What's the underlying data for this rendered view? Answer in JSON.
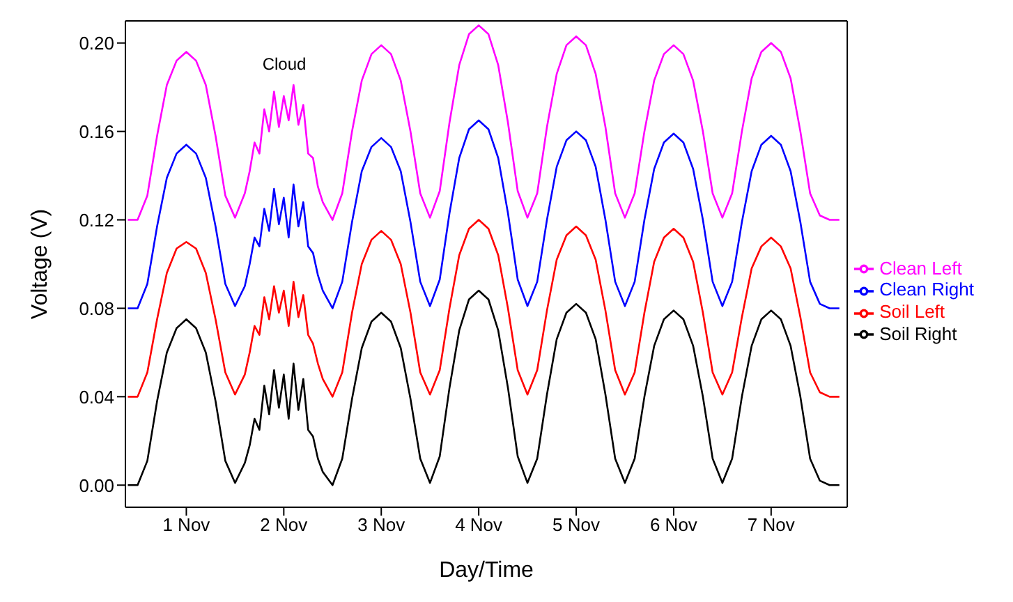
{
  "chart_data": {
    "type": "line",
    "xlabel": "Day/Time",
    "ylabel": "Voltage (V)",
    "legend": "right",
    "marker": "none",
    "line_style": "solid",
    "grid": false,
    "annotations": [
      "Cloud"
    ],
    "xlim": [
      "--10-31T21:00",
      "--11-08T06:45"
    ],
    "xticks": [
      {
        "value": "--11-01T12:00",
        "label": "1 Nov"
      },
      {
        "value": "--11-02T12:00",
        "label": "2 Nov"
      },
      {
        "value": "--11-03T12:00",
        "label": "3 Nov"
      },
      {
        "value": "--11-04T12:00",
        "label": "4 Nov"
      },
      {
        "value": "--11-05T12:00",
        "label": "5 Nov"
      },
      {
        "value": "--11-06T12:00",
        "label": "6 Nov"
      },
      {
        "value": "--11-07T12:00",
        "label": "7 Nov"
      }
    ],
    "ylim": [
      -0.01,
      0.21
    ],
    "yticks": [
      {
        "value": 0,
        "label": "0.00"
      },
      0.04,
      0.08,
      0.12,
      0.16,
      {
        "value": 0.2,
        "label": "0.20"
      }
    ],
    "x": [
      "--10-31T21:36",
      "--11-01T00:00",
      "--11-01T02:24",
      "--11-01T04:48",
      "--11-01T07:12",
      "--11-01T09:36",
      "--11-01T12:00",
      "--11-01T14:24",
      "--11-01T16:48",
      "--11-01T19:12",
      "--11-01T21:36",
      "--11-02T00:00",
      "--11-02T02:24",
      "--11-02T03:36",
      "--11-02T04:48",
      "--11-02T06:00",
      "--11-02T07:12",
      "--11-02T08:24",
      "--11-02T09:36",
      "--11-02T10:48",
      "--11-02T12:00",
      "--11-02T13:12",
      "--11-02T14:24",
      "--11-02T15:36",
      "--11-02T16:48",
      "--11-02T18:00",
      "--11-02T19:12",
      "--11-02T20:24",
      "--11-02T21:36",
      "--11-03T00:00",
      "--11-03T02:24",
      "--11-03T04:48",
      "--11-03T07:12",
      "--11-03T09:36",
      "--11-03T12:00",
      "--11-03T14:24",
      "--11-03T16:48",
      "--11-03T19:12",
      "--11-03T21:36",
      "--11-04T00:00",
      "--11-04T02:24",
      "--11-04T04:48",
      "--11-04T07:12",
      "--11-04T09:36",
      "--11-04T12:00",
      "--11-04T14:24",
      "--11-04T16:48",
      "--11-04T19:12",
      "--11-04T21:36",
      "--11-05T00:00",
      "--11-05T02:24",
      "--11-05T04:48",
      "--11-05T07:12",
      "--11-05T09:36",
      "--11-05T12:00",
      "--11-05T14:24",
      "--11-05T16:48",
      "--11-05T19:12",
      "--11-05T21:36",
      "--11-06T00:00",
      "--11-06T02:24",
      "--11-06T04:48",
      "--11-06T07:12",
      "--11-06T09:36",
      "--11-06T12:00",
      "--11-06T14:24",
      "--11-06T16:48",
      "--11-06T19:12",
      "--11-06T21:36",
      "--11-07T00:00",
      "--11-07T02:24",
      "--11-07T04:48",
      "--11-07T07:12",
      "--11-07T09:36",
      "--11-07T12:00",
      "--11-07T14:24",
      "--11-07T16:48",
      "--11-07T19:12",
      "--11-07T21:36",
      "--11-08T00:00",
      "--11-08T02:24",
      "--11-08T04:48"
    ],
    "series": [
      {
        "name": "Clean Left",
        "color": "#ff00ff",
        "values": [
          0.12,
          0.12,
          0.131,
          0.158,
          0.181,
          0.192,
          0.196,
          0.192,
          0.181,
          0.158,
          0.131,
          0.121,
          0.132,
          0.142,
          0.155,
          0.15,
          0.17,
          0.16,
          0.178,
          0.162,
          0.176,
          0.165,
          0.181,
          0.163,
          0.172,
          0.15,
          0.148,
          0.135,
          0.128,
          0.12,
          0.132,
          0.16,
          0.183,
          0.195,
          0.199,
          0.195,
          0.183,
          0.16,
          0.132,
          0.121,
          0.133,
          0.164,
          0.19,
          0.204,
          0.208,
          0.204,
          0.19,
          0.164,
          0.133,
          0.121,
          0.132,
          0.162,
          0.186,
          0.199,
          0.203,
          0.199,
          0.186,
          0.162,
          0.132,
          0.121,
          0.132,
          0.16,
          0.183,
          0.195,
          0.199,
          0.195,
          0.183,
          0.16,
          0.132,
          0.121,
          0.132,
          0.16,
          0.184,
          0.196,
          0.2,
          0.196,
          0.184,
          0.16,
          0.132,
          0.122,
          0.12,
          0.12
        ]
      },
      {
        "name": "Clean Right",
        "color": "#0000ff",
        "values": [
          0.08,
          0.08,
          0.091,
          0.117,
          0.139,
          0.15,
          0.154,
          0.15,
          0.139,
          0.117,
          0.091,
          0.081,
          0.09,
          0.1,
          0.112,
          0.108,
          0.125,
          0.115,
          0.134,
          0.118,
          0.13,
          0.112,
          0.136,
          0.117,
          0.128,
          0.108,
          0.105,
          0.095,
          0.088,
          0.08,
          0.092,
          0.119,
          0.142,
          0.153,
          0.157,
          0.153,
          0.142,
          0.119,
          0.092,
          0.081,
          0.093,
          0.123,
          0.148,
          0.161,
          0.165,
          0.161,
          0.148,
          0.123,
          0.093,
          0.081,
          0.092,
          0.12,
          0.144,
          0.156,
          0.16,
          0.156,
          0.144,
          0.12,
          0.092,
          0.081,
          0.092,
          0.12,
          0.143,
          0.155,
          0.159,
          0.155,
          0.143,
          0.12,
          0.092,
          0.081,
          0.092,
          0.119,
          0.142,
          0.154,
          0.158,
          0.154,
          0.142,
          0.119,
          0.092,
          0.082,
          0.08,
          0.08
        ]
      },
      {
        "name": "Soil Left",
        "color": "#ff0000",
        "values": [
          0.04,
          0.04,
          0.051,
          0.075,
          0.096,
          0.107,
          0.11,
          0.107,
          0.096,
          0.075,
          0.051,
          0.041,
          0.05,
          0.06,
          0.072,
          0.068,
          0.085,
          0.075,
          0.09,
          0.078,
          0.088,
          0.072,
          0.092,
          0.076,
          0.086,
          0.068,
          0.064,
          0.055,
          0.048,
          0.04,
          0.051,
          0.078,
          0.1,
          0.111,
          0.115,
          0.111,
          0.1,
          0.078,
          0.051,
          0.041,
          0.052,
          0.08,
          0.104,
          0.116,
          0.12,
          0.116,
          0.104,
          0.08,
          0.052,
          0.041,
          0.052,
          0.079,
          0.102,
          0.113,
          0.117,
          0.113,
          0.102,
          0.079,
          0.052,
          0.041,
          0.051,
          0.078,
          0.101,
          0.112,
          0.116,
          0.112,
          0.101,
          0.078,
          0.051,
          0.041,
          0.051,
          0.076,
          0.098,
          0.108,
          0.112,
          0.108,
          0.098,
          0.076,
          0.051,
          0.042,
          0.04,
          0.04
        ]
      },
      {
        "name": "Soil Right",
        "color": "#000000",
        "values": [
          0.0,
          0.0,
          0.011,
          0.038,
          0.06,
          0.071,
          0.075,
          0.071,
          0.06,
          0.038,
          0.011,
          0.001,
          0.01,
          0.018,
          0.03,
          0.025,
          0.045,
          0.032,
          0.052,
          0.035,
          0.05,
          0.03,
          0.055,
          0.034,
          0.048,
          0.025,
          0.022,
          0.012,
          0.006,
          0.0,
          0.012,
          0.039,
          0.062,
          0.074,
          0.078,
          0.074,
          0.062,
          0.039,
          0.012,
          0.001,
          0.013,
          0.044,
          0.07,
          0.084,
          0.088,
          0.084,
          0.07,
          0.044,
          0.013,
          0.001,
          0.012,
          0.041,
          0.066,
          0.078,
          0.082,
          0.078,
          0.066,
          0.041,
          0.012,
          0.001,
          0.012,
          0.04,
          0.063,
          0.075,
          0.079,
          0.075,
          0.063,
          0.04,
          0.012,
          0.001,
          0.012,
          0.04,
          0.063,
          0.075,
          0.079,
          0.075,
          0.063,
          0.04,
          0.012,
          0.002,
          0.0,
          0.0
        ]
      }
    ]
  }
}
